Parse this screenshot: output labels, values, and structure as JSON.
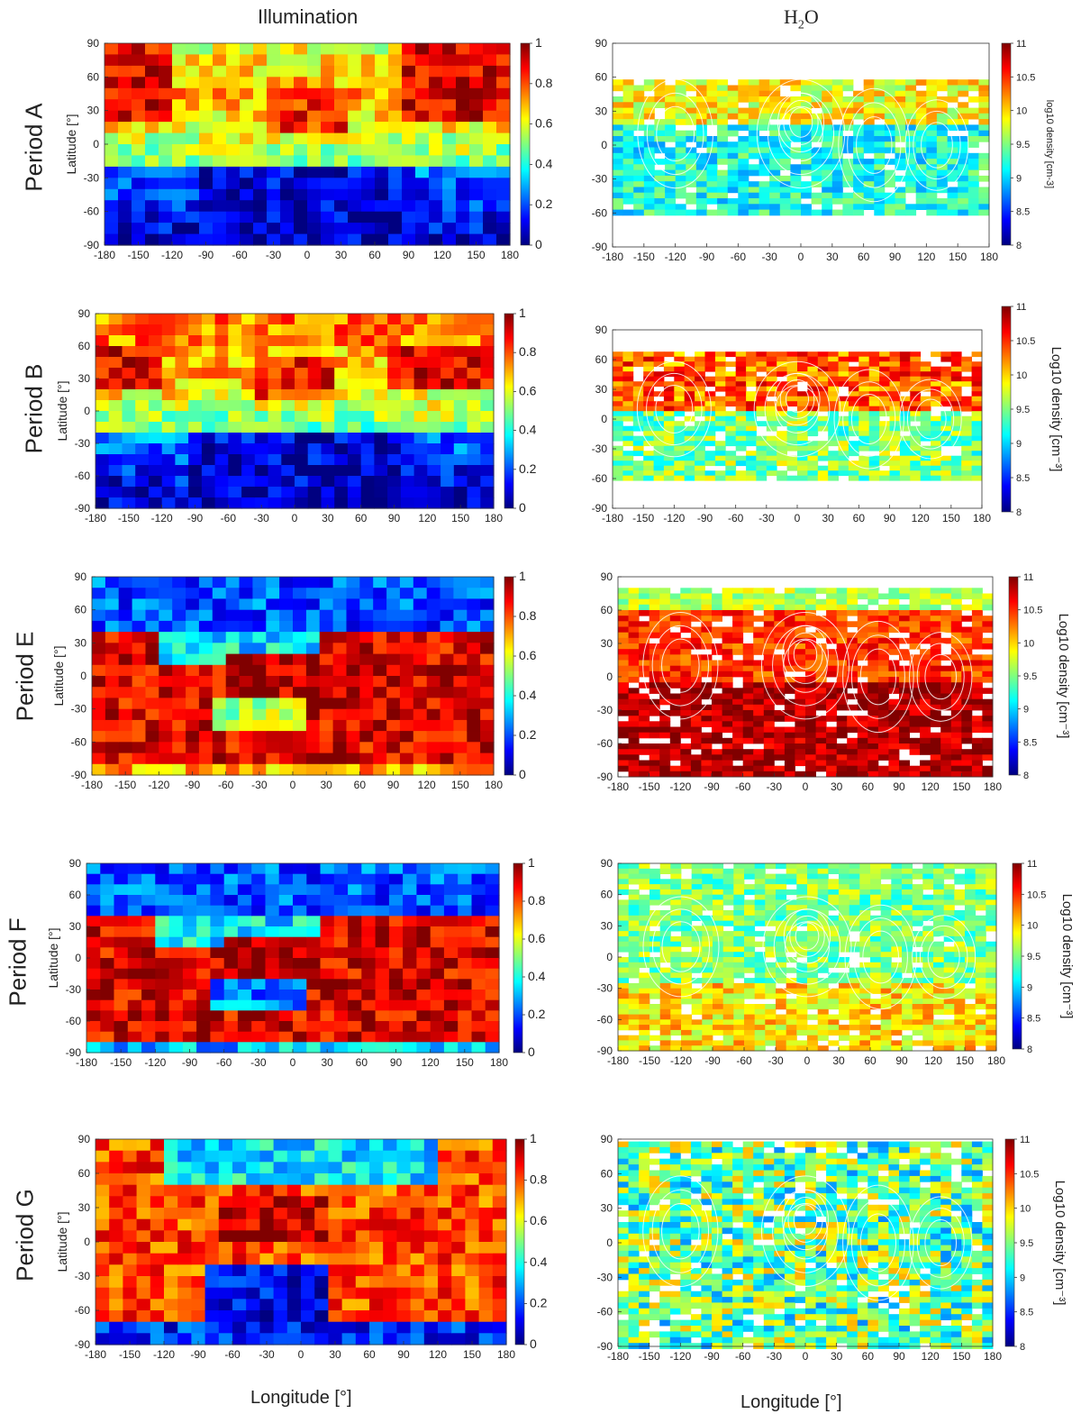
{
  "columns": {
    "left_title": "Illumination",
    "right_title_main": "H",
    "right_title_sub": "2",
    "right_title_end": "O"
  },
  "bottom_labels": {
    "left": "Longitude [°]",
    "right": "Longitude [°]"
  },
  "rows": [
    {
      "label": "Period A"
    },
    {
      "label": "Period B"
    },
    {
      "label": "Period E"
    },
    {
      "label": "Period F"
    },
    {
      "label": "Period G"
    }
  ],
  "chart_data": [
    {
      "type": "heatmap",
      "period": "Period A",
      "title": "Illumination",
      "ylabel": "Latitude [°]",
      "xlim": [
        -180,
        180
      ],
      "ylim": [
        -90,
        90
      ],
      "xticks": [
        -180,
        -150,
        -120,
        -90,
        -60,
        -30,
        0,
        30,
        60,
        90,
        120,
        150,
        180
      ],
      "yticks": [
        90,
        60,
        30,
        0,
        -30,
        -60,
        -90
      ],
      "colorbar": {
        "range": [
          0,
          1
        ],
        "ticks": [
          1,
          0.8,
          0.6,
          0.4,
          0.2,
          0
        ],
        "colormap": "jet"
      }
    },
    {
      "type": "heatmap",
      "period": "Period A",
      "title": "H2O",
      "xlim": [
        -180,
        180
      ],
      "ylim": [
        -90,
        90
      ],
      "xticks": [
        -180,
        -150,
        -120,
        -90,
        -60,
        -30,
        0,
        30,
        60,
        90,
        120,
        150,
        180
      ],
      "yticks": [
        90,
        60,
        30,
        0,
        -30,
        -60,
        -90
      ],
      "colorbar": {
        "label": "log10 density [cm-3]",
        "range": [
          8,
          11
        ],
        "ticks": [
          11,
          10.5,
          10,
          9.5,
          9,
          8.5,
          8
        ],
        "colormap": "jet"
      },
      "data_extent_lat": [
        -60,
        58
      ]
    },
    {
      "type": "heatmap",
      "period": "Period B",
      "title": "Illumination",
      "ylabel": "Latitude [°]",
      "xlim": [
        -180,
        180
      ],
      "ylim": [
        -90,
        90
      ],
      "xticks": [
        -180,
        -150,
        -120,
        -90,
        -60,
        -30,
        0,
        30,
        60,
        90,
        120,
        150,
        180
      ],
      "yticks": [
        90,
        60,
        30,
        0,
        -30,
        -60,
        -90
      ],
      "colorbar": {
        "range": [
          0,
          1
        ],
        "ticks": [
          1,
          0.8,
          0.6,
          0.4,
          0.2,
          0
        ],
        "colormap": "jet"
      }
    },
    {
      "type": "heatmap",
      "period": "Period B",
      "title": "H2O",
      "xlim": [
        -180,
        180
      ],
      "ylim": [
        -90,
        90
      ],
      "xticks": [
        -180,
        -150,
        -120,
        -90,
        -60,
        -30,
        0,
        30,
        60,
        90,
        120,
        150,
        180
      ],
      "yticks": [
        90,
        60,
        30,
        0,
        -30,
        -60,
        -90
      ],
      "colorbar": {
        "label": "Log10 density [cm⁻³]",
        "range": [
          8,
          11
        ],
        "ticks": [
          11,
          10.5,
          10,
          9.5,
          9,
          8.5,
          8
        ],
        "colormap": "jet"
      },
      "data_extent_lat": [
        -62,
        68
      ]
    },
    {
      "type": "heatmap",
      "period": "Period E",
      "title": "Illumination",
      "ylabel": "Latitude [°]",
      "xlim": [
        -180,
        180
      ],
      "ylim": [
        -90,
        90
      ],
      "xticks": [
        -180,
        -150,
        -120,
        -90,
        -60,
        -30,
        0,
        30,
        60,
        90,
        120,
        150,
        180
      ],
      "yticks": [
        90,
        60,
        30,
        0,
        -30,
        -60,
        -90
      ],
      "colorbar": {
        "range": [
          0,
          1
        ],
        "ticks": [
          1,
          0.8,
          0.6,
          0.4,
          0.2,
          0
        ],
        "colormap": "jet"
      }
    },
    {
      "type": "heatmap",
      "period": "Period E",
      "title": "H2O",
      "xlim": [
        -180,
        180
      ],
      "ylim": [
        -90,
        90
      ],
      "xticks": [
        -180,
        -150,
        -120,
        -90,
        -60,
        -30,
        0,
        30,
        60,
        90,
        120,
        150,
        180
      ],
      "yticks": [
        90,
        60,
        30,
        0,
        -30,
        -60,
        -90
      ],
      "colorbar": {
        "label": "Log10 density [cm⁻³]",
        "range": [
          8,
          11
        ],
        "ticks": [
          11,
          10.5,
          10,
          9.5,
          9,
          8.5,
          8
        ],
        "colormap": "jet"
      },
      "data_extent_lat": [
        -88,
        80
      ]
    },
    {
      "type": "heatmap",
      "period": "Period F",
      "title": "Illumination",
      "ylabel": "Latitude [°]",
      "xlim": [
        -180,
        180
      ],
      "ylim": [
        -90,
        90
      ],
      "xticks": [
        -180,
        -150,
        -120,
        -90,
        -60,
        -30,
        0,
        30,
        60,
        90,
        120,
        150,
        180
      ],
      "yticks": [
        90,
        60,
        30,
        0,
        -30,
        -60,
        -90
      ],
      "colorbar": {
        "range": [
          0,
          1
        ],
        "ticks": [
          1,
          0.8,
          0.6,
          0.4,
          0.2,
          0
        ],
        "colormap": "jet"
      }
    },
    {
      "type": "heatmap",
      "period": "Period F",
      "title": "H2O",
      "xlim": [
        -180,
        180
      ],
      "ylim": [
        -90,
        90
      ],
      "xticks": [
        -180,
        -150,
        -120,
        -90,
        -60,
        -30,
        0,
        30,
        60,
        90,
        120,
        150,
        180
      ],
      "yticks": [
        90,
        60,
        30,
        0,
        -30,
        -60,
        -90
      ],
      "colorbar": {
        "label": "Log10 density [cm⁻³]",
        "range": [
          8,
          11
        ],
        "ticks": [
          11,
          10.5,
          10,
          9.5,
          9,
          8.5,
          8
        ],
        "colormap": "jet"
      },
      "data_extent_lat": [
        -90,
        90
      ]
    },
    {
      "type": "heatmap",
      "period": "Period G",
      "title": "Illumination",
      "ylabel": "Latitude [°]",
      "xlim": [
        -180,
        180
      ],
      "ylim": [
        -90,
        90
      ],
      "xticks": [
        -180,
        -150,
        -120,
        -90,
        -60,
        -30,
        0,
        30,
        60,
        90,
        120,
        150,
        180
      ],
      "yticks": [
        90,
        60,
        30,
        0,
        -30,
        -60,
        -90
      ],
      "colorbar": {
        "range": [
          0,
          1
        ],
        "ticks": [
          1,
          0.8,
          0.6,
          0.4,
          0.2,
          0
        ],
        "colormap": "jet"
      }
    },
    {
      "type": "heatmap",
      "period": "Period G",
      "title": "H2O",
      "xlim": [
        -180,
        180
      ],
      "ylim": [
        -90,
        90
      ],
      "xticks": [
        -180,
        -150,
        -120,
        -90,
        -60,
        -30,
        0,
        30,
        60,
        90,
        120,
        150,
        180
      ],
      "yticks": [
        90,
        60,
        30,
        0,
        -30,
        -60,
        -90
      ],
      "colorbar": {
        "label": "Log10 density [cm⁻³]",
        "range": [
          8,
          11
        ],
        "ticks": [
          11,
          10.5,
          10,
          9.5,
          9,
          8.5,
          8
        ],
        "colormap": "jet"
      },
      "data_extent_lat": [
        -90,
        88
      ]
    }
  ]
}
